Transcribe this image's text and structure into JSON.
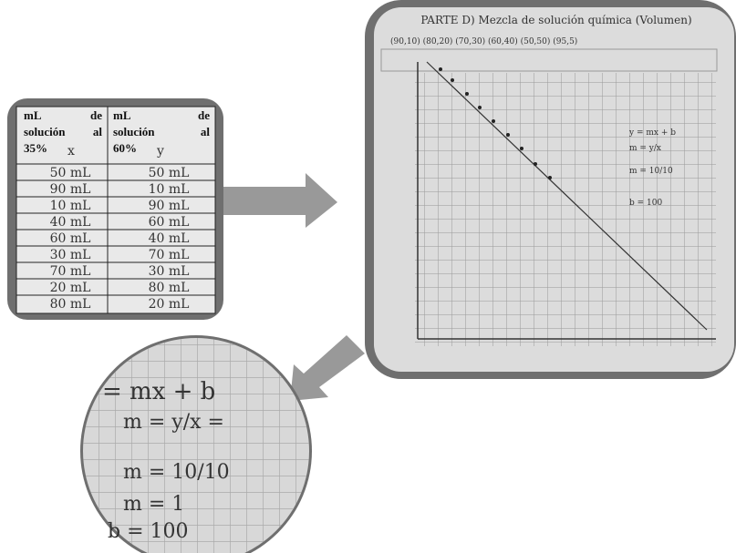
{
  "table": {
    "headers": [
      [
        "mL",
        "de",
        "solución",
        "al",
        "35%",
        "x"
      ],
      [
        "mL",
        "de",
        "solución",
        "al",
        "60%",
        "y"
      ]
    ],
    "rows": [
      [
        "50 mL",
        "50 mL"
      ],
      [
        "90 mL",
        "10 mL"
      ],
      [
        "10 mL",
        "90 mL"
      ],
      [
        "40 mL",
        "60 mL"
      ],
      [
        "60 mL",
        "40 mL"
      ],
      [
        "30 mL",
        "70 mL"
      ],
      [
        "70 mL",
        "30 mL"
      ],
      [
        "20 mL",
        "80 mL"
      ],
      [
        "80 mL",
        "20 mL"
      ]
    ]
  },
  "graph": {
    "title": "PARTE D) Mezcla de solución química (Volumen)",
    "points_label": "(90,10) (80,20) (70,30) (60,40) (50,50) (95,5)",
    "notes": [
      "y = mx + b",
      "m = y/x",
      "m = 10/10",
      "b = 100"
    ]
  },
  "zoom": {
    "lines": [
      "= mx + b",
      "m = y/x =",
      "m = 10/10",
      "m = 1",
      "b = 100"
    ]
  }
}
